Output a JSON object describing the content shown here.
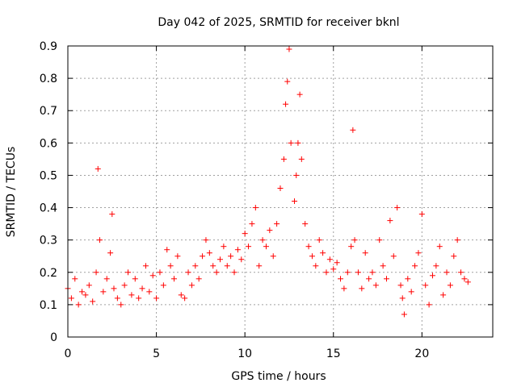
{
  "chart_data": {
    "type": "scatter",
    "title": "Day 042 of 2025, SRMTID for receiver bknl",
    "xlabel": "GPS time / hours",
    "ylabel": "SRMTID / TECUs",
    "xlim": [
      0,
      24
    ],
    "ylim": [
      0,
      0.9
    ],
    "xticks": [
      0,
      5,
      10,
      15,
      20
    ],
    "xtick_labels": [
      "0",
      "5",
      "10",
      "15",
      "20"
    ],
    "yticks": [
      0,
      0.1,
      0.2,
      0.3,
      0.4,
      0.5,
      0.6,
      0.7,
      0.8,
      0.9
    ],
    "ytick_labels": [
      "0",
      "0.1",
      "0.2",
      "0.3",
      "0.4",
      "0.5",
      "0.6",
      "0.7",
      "0.8",
      "0.9"
    ],
    "grid": true,
    "marker": "+",
    "marker_color": "#ff0000",
    "series": [
      {
        "name": "SRMTID",
        "x": [
          0.0,
          0.2,
          0.4,
          0.6,
          0.8,
          1.0,
          1.2,
          1.4,
          1.6,
          1.7,
          1.8,
          2.0,
          2.2,
          2.4,
          2.5,
          2.6,
          2.8,
          3.0,
          3.2,
          3.4,
          3.6,
          3.8,
          4.0,
          4.2,
          4.4,
          4.6,
          4.8,
          5.0,
          5.2,
          5.4,
          5.6,
          5.8,
          6.0,
          6.2,
          6.4,
          6.6,
          6.8,
          7.0,
          7.2,
          7.4,
          7.6,
          7.8,
          8.0,
          8.2,
          8.4,
          8.6,
          8.8,
          9.0,
          9.2,
          9.4,
          9.6,
          9.8,
          10.0,
          10.2,
          10.4,
          10.6,
          10.8,
          11.0,
          11.2,
          11.4,
          11.6,
          11.8,
          12.0,
          12.2,
          12.3,
          12.4,
          12.5,
          12.6,
          12.8,
          12.9,
          13.0,
          13.1,
          13.2,
          13.4,
          13.6,
          13.8,
          14.0,
          14.2,
          14.4,
          14.6,
          14.8,
          15.0,
          15.2,
          15.4,
          15.6,
          15.8,
          16.0,
          16.1,
          16.2,
          16.4,
          16.6,
          16.8,
          17.0,
          17.2,
          17.4,
          17.6,
          17.8,
          18.0,
          18.2,
          18.4,
          18.6,
          18.8,
          18.9,
          19.0,
          19.2,
          19.4,
          19.6,
          19.8,
          20.0,
          20.2,
          20.4,
          20.6,
          20.8,
          21.0,
          21.2,
          21.4,
          21.6,
          21.8,
          22.0,
          22.2,
          22.4,
          22.6
        ],
        "y": [
          0.15,
          0.12,
          0.18,
          0.1,
          0.14,
          0.13,
          0.16,
          0.11,
          0.2,
          0.52,
          0.3,
          0.14,
          0.18,
          0.26,
          0.38,
          0.15,
          0.12,
          0.1,
          0.16,
          0.2,
          0.13,
          0.18,
          0.12,
          0.15,
          0.22,
          0.14,
          0.19,
          0.12,
          0.2,
          0.16,
          0.27,
          0.22,
          0.18,
          0.25,
          0.13,
          0.12,
          0.2,
          0.16,
          0.22,
          0.18,
          0.25,
          0.3,
          0.26,
          0.22,
          0.2,
          0.24,
          0.28,
          0.22,
          0.25,
          0.2,
          0.27,
          0.24,
          0.32,
          0.28,
          0.35,
          0.4,
          0.22,
          0.3,
          0.28,
          0.33,
          0.25,
          0.35,
          0.46,
          0.55,
          0.72,
          0.79,
          0.89,
          0.6,
          0.42,
          0.5,
          0.6,
          0.75,
          0.55,
          0.35,
          0.28,
          0.25,
          0.22,
          0.3,
          0.26,
          0.2,
          0.24,
          0.21,
          0.23,
          0.18,
          0.15,
          0.2,
          0.28,
          0.64,
          0.3,
          0.2,
          0.15,
          0.26,
          0.18,
          0.2,
          0.16,
          0.3,
          0.22,
          0.18,
          0.36,
          0.25,
          0.4,
          0.16,
          0.12,
          0.07,
          0.18,
          0.14,
          0.22,
          0.26,
          0.38,
          0.16,
          0.1,
          0.19,
          0.22,
          0.28,
          0.13,
          0.2,
          0.16,
          0.25,
          0.3,
          0.2,
          0.18,
          0.17
        ]
      }
    ]
  }
}
